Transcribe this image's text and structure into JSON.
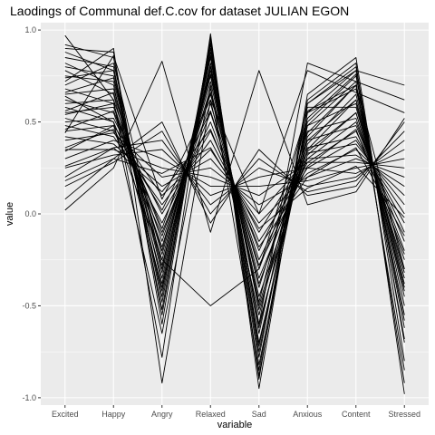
{
  "colors": {
    "panel_background": "#EBEBEB",
    "grid": "#FFFFFF",
    "line": "#000000",
    "tick_text": "#4D4D4D",
    "text": "#000000"
  },
  "chart_data": {
    "type": "line",
    "title": "Laodings of Communal def.C.cov for dataset JULIAN EGON",
    "xlabel": "variable",
    "ylabel": "value",
    "categories": [
      "Excited",
      "Happy",
      "Angry",
      "Relaxed",
      "Sad",
      "Anxious",
      "Content",
      "Stressed"
    ],
    "ylim": [
      -1.04,
      1.04
    ],
    "yticks": [
      -1.0,
      -0.5,
      0.0,
      0.5,
      1.0
    ],
    "ytick_labels": [
      "-1.0",
      "-0.5",
      "0.0",
      "0.5",
      "1.0"
    ],
    "grid": true,
    "legend": "none",
    "series": [
      {
        "values": [
          0.97,
          0.62,
          -0.78,
          0.98,
          -0.95,
          0.62,
          0.82,
          -0.98
        ]
      },
      {
        "values": [
          0.92,
          0.85,
          -0.55,
          0.95,
          -0.88,
          0.55,
          0.78,
          -0.92
        ]
      },
      {
        "values": [
          0.88,
          0.78,
          -0.52,
          0.92,
          -0.82,
          0.48,
          0.72,
          -0.85
        ]
      },
      {
        "values": [
          0.85,
          0.8,
          -0.48,
          0.9,
          -0.78,
          0.6,
          0.8,
          -0.7
        ]
      },
      {
        "values": [
          0.82,
          0.7,
          -0.42,
          0.88,
          -0.72,
          0.5,
          0.75,
          -0.62
        ]
      },
      {
        "values": [
          0.8,
          0.75,
          -0.38,
          0.85,
          -0.7,
          0.42,
          0.7,
          -0.58
        ]
      },
      {
        "values": [
          0.78,
          0.65,
          -0.35,
          0.82,
          -0.65,
          0.55,
          0.68,
          -0.5
        ]
      },
      {
        "values": [
          0.75,
          0.72,
          -0.32,
          0.8,
          -0.6,
          0.38,
          0.65,
          -0.45
        ]
      },
      {
        "values": [
          0.72,
          0.9,
          -0.92,
          0.62,
          -0.55,
          0.48,
          0.6,
          -0.4
        ]
      },
      {
        "values": [
          0.7,
          0.82,
          -0.28,
          0.78,
          -0.52,
          0.35,
          0.62,
          -0.38
        ]
      },
      {
        "values": [
          0.68,
          0.6,
          -0.25,
          0.75,
          -0.48,
          0.58,
          0.58,
          -0.35
        ]
      },
      {
        "values": [
          0.65,
          0.68,
          -0.22,
          0.72,
          -0.45,
          0.32,
          0.55,
          -0.3
        ]
      },
      {
        "values": [
          0.62,
          0.55,
          -0.18,
          0.68,
          -0.4,
          0.45,
          0.52,
          -0.25
        ]
      },
      {
        "values": [
          0.6,
          0.62,
          -0.15,
          0.65,
          -0.35,
          0.3,
          0.5,
          -0.2
        ]
      },
      {
        "values": [
          0.58,
          0.5,
          -0.12,
          0.6,
          -0.3,
          0.4,
          0.48,
          -0.15
        ]
      },
      {
        "values": [
          0.55,
          0.58,
          -0.1,
          0.55,
          -0.25,
          0.28,
          0.45,
          -0.1
        ]
      },
      {
        "values": [
          0.52,
          0.45,
          -0.05,
          0.5,
          -0.2,
          0.36,
          0.42,
          -0.05
        ]
      },
      {
        "values": [
          0.5,
          0.52,
          0.0,
          0.45,
          -0.15,
          0.25,
          0.4,
          0.0
        ]
      },
      {
        "values": [
          0.48,
          0.42,
          0.05,
          0.4,
          -0.1,
          0.33,
          0.38,
          0.05
        ]
      },
      {
        "values": [
          0.45,
          0.48,
          0.1,
          0.35,
          -0.05,
          0.22,
          0.35,
          0.1
        ]
      },
      {
        "values": [
          0.42,
          0.38,
          0.15,
          0.3,
          0.0,
          0.3,
          0.32,
          0.15
        ]
      },
      {
        "values": [
          0.4,
          0.44,
          0.2,
          0.25,
          0.05,
          0.2,
          0.3,
          0.2
        ]
      },
      {
        "values": [
          0.35,
          0.35,
          0.25,
          0.2,
          0.1,
          0.28,
          0.28,
          0.25
        ]
      },
      {
        "values": [
          0.3,
          0.4,
          0.3,
          0.15,
          0.15,
          0.18,
          0.25,
          0.3
        ]
      },
      {
        "values": [
          0.25,
          0.32,
          0.35,
          0.1,
          0.2,
          0.25,
          0.22,
          0.35
        ]
      },
      {
        "values": [
          0.2,
          0.36,
          0.4,
          0.05,
          0.25,
          0.15,
          0.2,
          0.4
        ]
      },
      {
        "values": [
          0.15,
          0.28,
          0.45,
          0.0,
          0.3,
          0.12,
          0.18,
          0.45
        ]
      },
      {
        "values": [
          0.08,
          0.3,
          0.5,
          -0.05,
          0.35,
          0.1,
          0.15,
          0.5
        ]
      },
      {
        "values": [
          0.02,
          0.25,
          0.83,
          -0.1,
          0.78,
          0.05,
          0.12,
          0.52
        ]
      },
      {
        "values": [
          0.9,
          0.88,
          -0.6,
          0.96,
          -0.9,
          0.65,
          0.85,
          -0.8
        ]
      },
      {
        "values": [
          0.74,
          0.78,
          -0.45,
          0.93,
          -0.75,
          0.52,
          0.76,
          -0.68
        ]
      },
      {
        "values": [
          0.66,
          0.74,
          -0.3,
          0.86,
          -0.62,
          0.44,
          0.7,
          -0.55
        ]
      },
      {
        "values": [
          0.56,
          0.66,
          -0.2,
          0.76,
          -0.5,
          0.4,
          0.62,
          -0.42
        ]
      },
      {
        "values": [
          0.46,
          0.56,
          -0.08,
          0.66,
          -0.38,
          0.34,
          0.55,
          -0.32
        ]
      },
      {
        "values": [
          0.36,
          0.46,
          0.02,
          0.56,
          -0.28,
          0.26,
          0.46,
          -0.22
        ]
      },
      {
        "values": [
          0.26,
          0.36,
          0.12,
          0.46,
          -0.18,
          0.2,
          0.36,
          -0.12
        ]
      },
      {
        "values": [
          0.18,
          0.3,
          0.22,
          0.36,
          -0.08,
          0.14,
          0.26,
          -0.02
        ]
      },
      {
        "values": [
          0.64,
          0.5,
          -0.65,
          0.7,
          -0.85,
          0.6,
          0.78,
          0.7
        ]
      },
      {
        "values": [
          0.54,
          0.6,
          -0.4,
          0.8,
          -0.6,
          0.82,
          0.72,
          0.62
        ]
      },
      {
        "values": [
          0.44,
          0.86,
          0.08,
          0.62,
          0.0,
          0.78,
          0.66,
          0.55
        ]
      },
      {
        "values": [
          0.34,
          0.48,
          -0.25,
          -0.5,
          -0.3,
          0.56,
          0.7,
          -0.3
        ]
      }
    ]
  }
}
